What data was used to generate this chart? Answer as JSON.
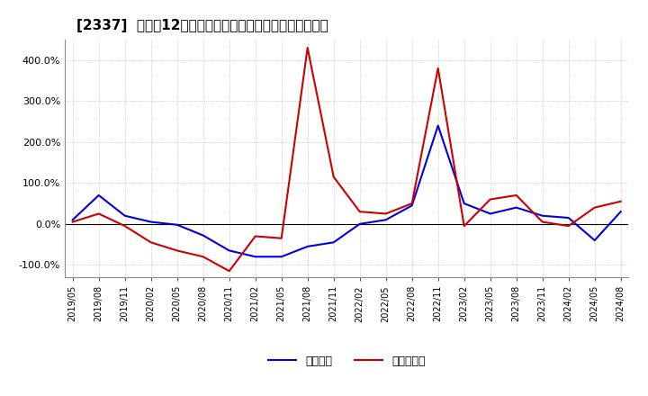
{
  "title": "[2337]  利益の12か月移動合計の対前年同期増減率の推移",
  "ylim": [
    -130,
    450
  ],
  "yticks": [
    -100,
    0,
    100,
    200,
    300,
    400
  ],
  "ytick_labels": [
    "-100.0%",
    "0.0%",
    "100.0%",
    "200.0%",
    "300.0%",
    "400.0%"
  ],
  "legend_labels": [
    "経常利益",
    "当期純利益"
  ],
  "line_colors": [
    "#0000dd",
    "#cc0000"
  ],
  "background_color": "#ffffff",
  "plot_bg_color": "#ffffff",
  "grid_color": "#aaaaaa",
  "dates": [
    "2019/05",
    "2019/08",
    "2019/11",
    "2020/02",
    "2020/05",
    "2020/08",
    "2020/11",
    "2021/02",
    "2021/05",
    "2021/08",
    "2021/11",
    "2022/02",
    "2022/05",
    "2022/08",
    "2022/11",
    "2023/02",
    "2023/05",
    "2023/08",
    "2023/11",
    "2024/02",
    "2024/05",
    "2024/08"
  ],
  "ordinary_profit": [
    10,
    70,
    20,
    5,
    -2,
    -28,
    -65,
    -80,
    -80,
    -55,
    -45,
    0,
    10,
    45,
    240,
    50,
    25,
    40,
    20,
    15,
    -40,
    30
  ],
  "net_profit": [
    5,
    25,
    -5,
    -45,
    -65,
    -80,
    -115,
    -30,
    -35,
    430,
    115,
    30,
    25,
    50,
    380,
    -5,
    60,
    70,
    5,
    -5,
    40,
    55
  ]
}
